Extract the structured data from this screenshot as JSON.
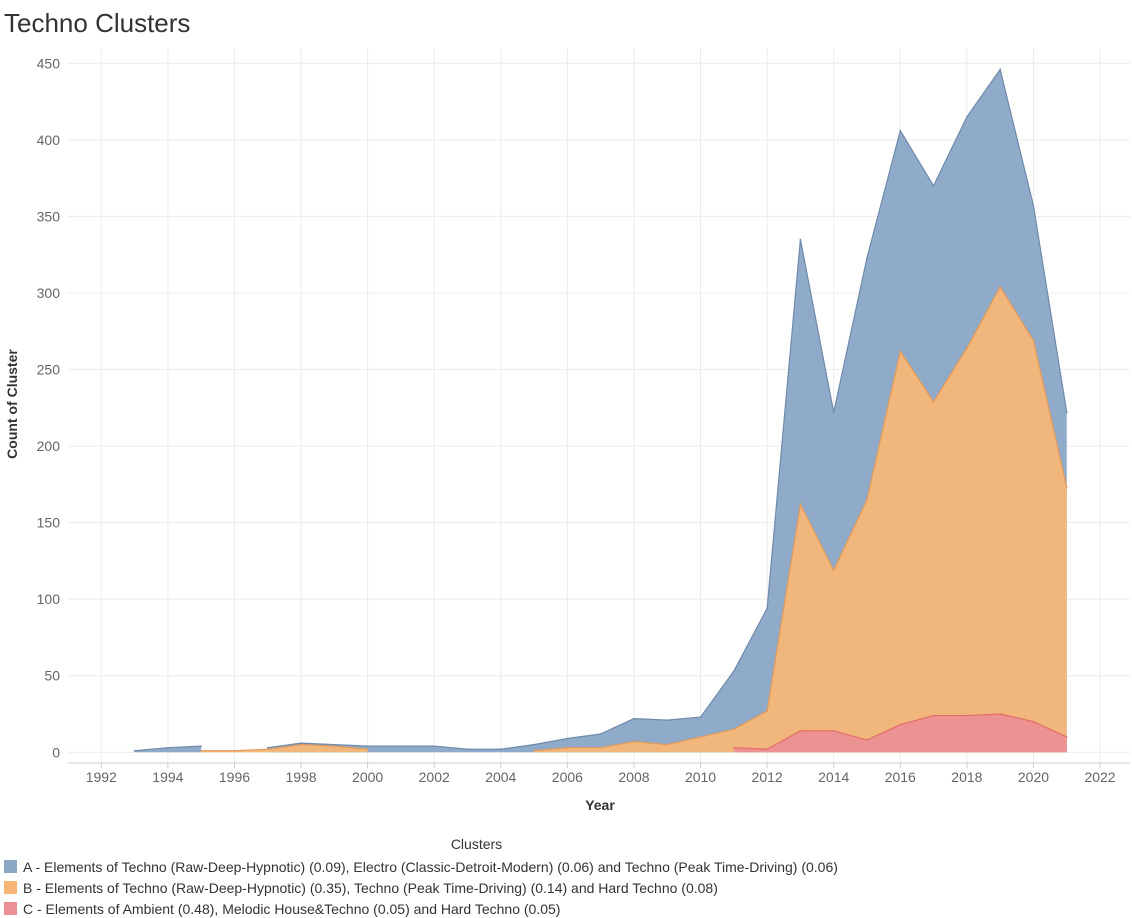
{
  "title": "Techno Clusters",
  "colors": {
    "A": "#8aa7c6",
    "A_line": "#6f8aab",
    "B": "#f5b677",
    "B_line": "#e39a5a",
    "C": "#ec9095",
    "C_line": "#e26d6a",
    "grid": "#ececec"
  },
  "chart_data": {
    "type": "area",
    "stacked": true,
    "xlabel": "Year",
    "ylabel": "Count of Cluster",
    "xlim": [
      1991,
      2022.9
    ],
    "ylim": [
      -7,
      460
    ],
    "x_ticks": [
      1992,
      1994,
      1996,
      1998,
      2000,
      2002,
      2004,
      2006,
      2008,
      2010,
      2012,
      2014,
      2016,
      2018,
      2020,
      2022
    ],
    "y_ticks": [
      0,
      50,
      100,
      150,
      200,
      250,
      300,
      350,
      400,
      450
    ],
    "grid": true,
    "legend_title": "Clusters",
    "legend_position": "bottom",
    "series": [
      {
        "key": "C",
        "name": "C - Elements of Ambient (0.48), Melodic House&Techno (0.05) and Hard Techno (0.05)",
        "segments": [
          [
            [
              2011,
              3
            ],
            [
              2012,
              2
            ],
            [
              2013,
              14
            ],
            [
              2014,
              14
            ],
            [
              2015,
              8
            ],
            [
              2016,
              18
            ],
            [
              2017,
              24
            ],
            [
              2018,
              24
            ],
            [
              2019,
              25
            ],
            [
              2020,
              20
            ],
            [
              2021,
              10
            ]
          ]
        ]
      },
      {
        "key": "B",
        "name": "B - Elements of Techno (Raw-Deep-Hypnotic) (0.35), Techno (Peak Time-Driving) (0.14) and Hard Techno (0.08)",
        "segments": [
          [
            [
              1995,
              1
            ],
            [
              1996,
              1
            ],
            [
              1997,
              2
            ]
          ],
          [
            [
              1997,
              2
            ],
            [
              1998,
              5
            ],
            [
              1999,
              4
            ],
            [
              2000,
              2
            ]
          ],
          [
            [
              2005,
              1
            ],
            [
              2006,
              3
            ],
            [
              2007,
              3
            ],
            [
              2008,
              7
            ],
            [
              2009,
              5
            ],
            [
              2010,
              10
            ],
            [
              2011,
              15
            ],
            [
              2012,
              27
            ],
            [
              2013,
              162
            ],
            [
              2014,
              119
            ],
            [
              2015,
              165
            ],
            [
              2016,
              262
            ],
            [
              2017,
              229
            ],
            [
              2018,
              264
            ],
            [
              2019,
              304
            ],
            [
              2020,
              269
            ],
            [
              2021,
              173
            ]
          ]
        ]
      },
      {
        "key": "A",
        "name": "A - Elements of Techno (Raw-Deep-Hypnotic) (0.09), Electro (Classic-Detroit-Modern) (0.06) and Techno (Peak Time-Driving) (0.06)",
        "segments": [
          [
            [
              1993,
              1
            ],
            [
              1994,
              3
            ],
            [
              1995,
              4
            ]
          ],
          [
            [
              1997,
              3
            ],
            [
              1998,
              6
            ],
            [
              1999,
              5
            ],
            [
              2000,
              4
            ],
            [
              2001,
              4
            ],
            [
              2002,
              4
            ],
            [
              2003,
              2
            ],
            [
              2004,
              2
            ],
            [
              2005,
              5
            ],
            [
              2006,
              9
            ],
            [
              2007,
              12
            ],
            [
              2008,
              22
            ],
            [
              2009,
              21
            ],
            [
              2010,
              23
            ],
            [
              2011,
              53
            ],
            [
              2012,
              94
            ],
            [
              2013,
              335
            ],
            [
              2014,
              222
            ],
            [
              2015,
              323
            ],
            [
              2016,
              406
            ],
            [
              2017,
              370
            ],
            [
              2018,
              415
            ],
            [
              2019,
              446
            ],
            [
              2020,
              357
            ],
            [
              2021,
              222
            ]
          ]
        ]
      }
    ]
  },
  "legend": [
    {
      "key": "A",
      "label": "A - Elements of Techno (Raw-Deep-Hypnotic) (0.09), Electro (Classic-Detroit-Modern) (0.06) and Techno (Peak Time-Driving) (0.06)"
    },
    {
      "key": "B",
      "label": "B - Elements of Techno (Raw-Deep-Hypnotic) (0.35), Techno (Peak Time-Driving) (0.14) and Hard Techno (0.08)"
    },
    {
      "key": "C",
      "label": "C - Elements of Ambient (0.48), Melodic House&Techno (0.05) and Hard Techno (0.05)"
    }
  ]
}
